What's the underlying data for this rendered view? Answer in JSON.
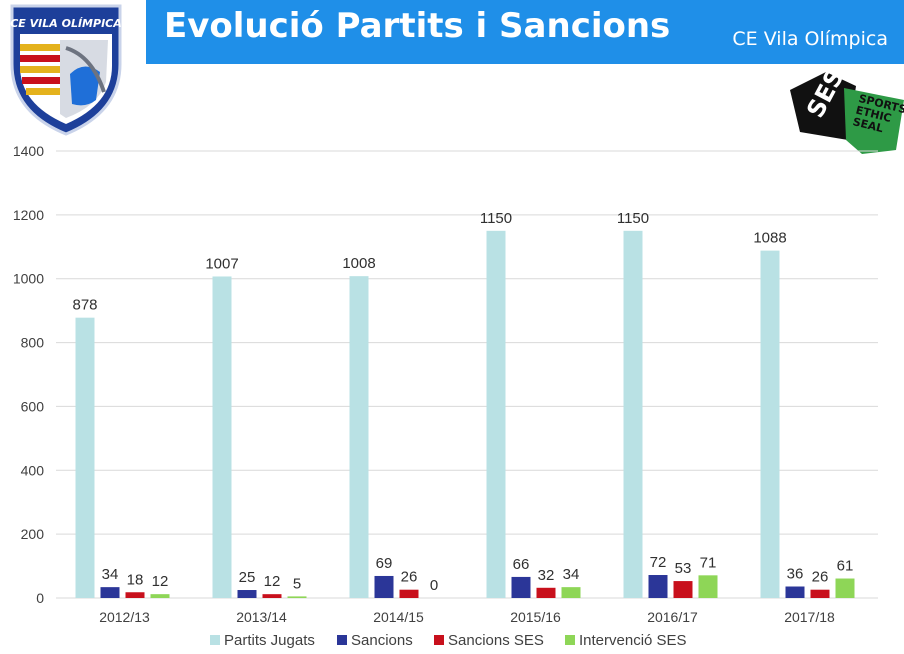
{
  "header": {
    "title": "Evolució Partits i Sancions",
    "club_name": "CE Vila Olímpica"
  },
  "logos": {
    "club_crest": {
      "text": "CE VILA OLÍMPICA",
      "icon": "club-crest-icon"
    },
    "ses_badge": {
      "text": [
        "SES",
        "SPORTS",
        "ETHIC",
        "SEAL"
      ],
      "icon": "ses-seal-icon"
    }
  },
  "colors": {
    "title_bar": "#1f8fe8",
    "partits_jugats": "#b9e1e4",
    "sancions": "#2b3698",
    "sancions_ses": "#c8101c",
    "intervencio_ses": "#8ed657"
  },
  "chart_data": {
    "type": "bar",
    "categories": [
      "2012/13",
      "2013/14",
      "2014/15",
      "2015/16",
      "2016/17",
      "2017/18"
    ],
    "series": [
      {
        "name": "Partits Jugats",
        "values": [
          878,
          1007,
          1008,
          1150,
          1150,
          1088
        ],
        "color": "#b9e1e4"
      },
      {
        "name": "Sancions",
        "values": [
          34,
          25,
          69,
          66,
          72,
          36
        ],
        "color": "#2b3698"
      },
      {
        "name": "Sancions SES",
        "values": [
          18,
          12,
          26,
          32,
          53,
          26
        ],
        "color": "#c8101c"
      },
      {
        "name": "Intervenció SES",
        "values": [
          12,
          5,
          0,
          34,
          71,
          61
        ],
        "color": "#8ed657"
      }
    ],
    "yticks": [
      0,
      200,
      400,
      600,
      800,
      1000,
      1200,
      1400
    ],
    "ylim": [
      0,
      1400
    ],
    "grid": true,
    "legend": "bottom",
    "data_labels": true
  }
}
